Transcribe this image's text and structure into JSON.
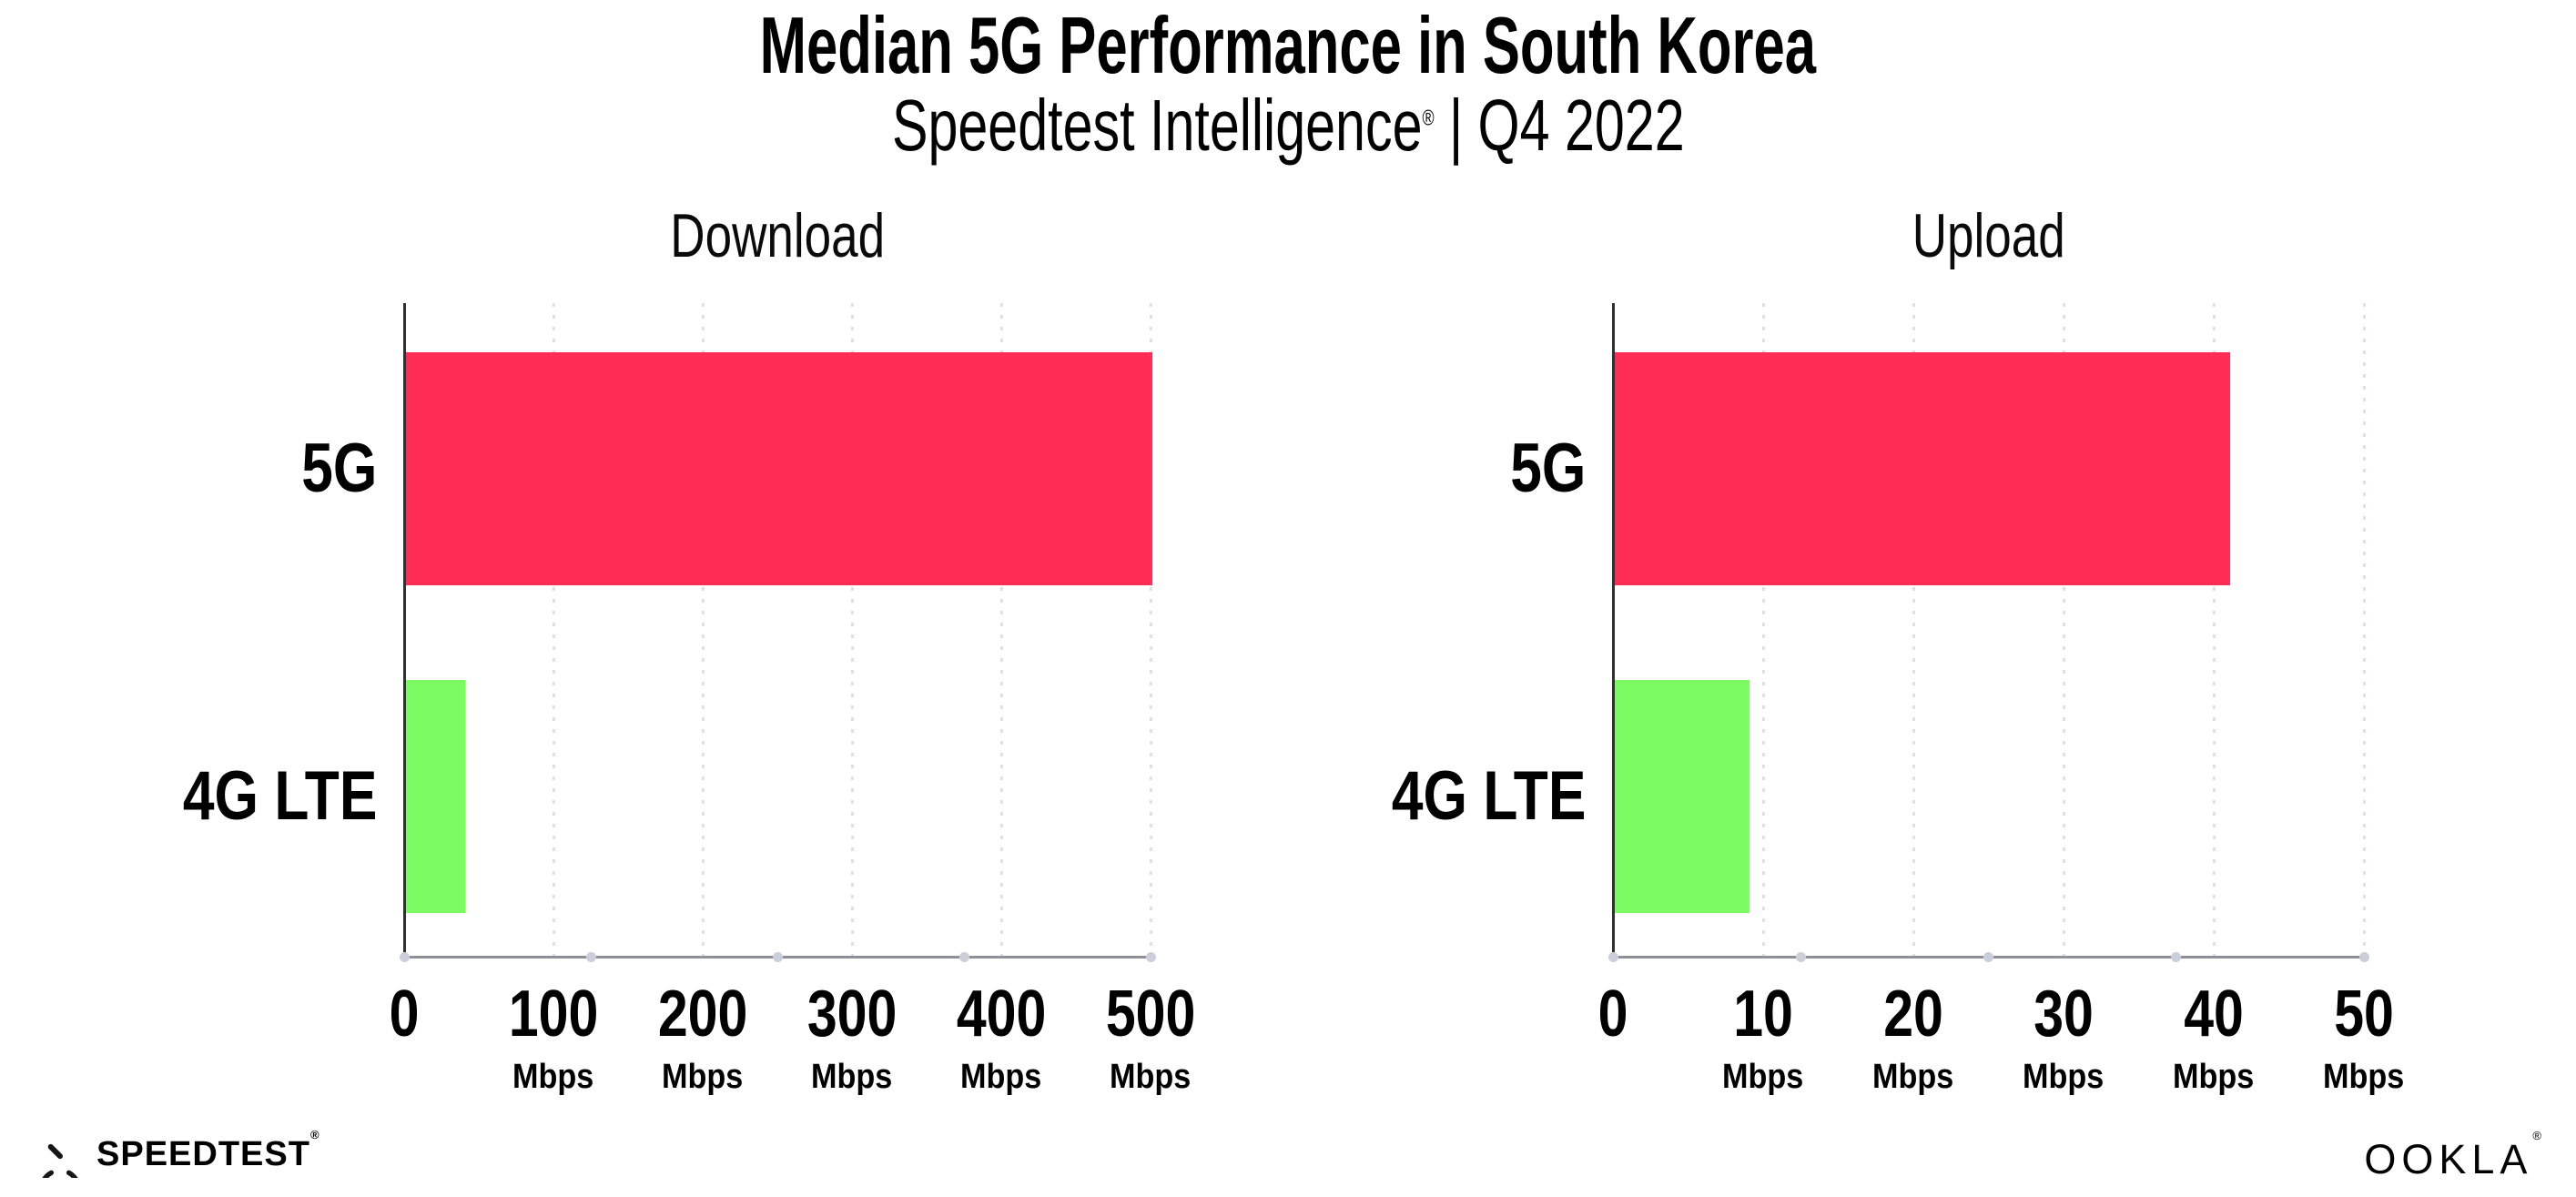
{
  "header": {
    "title": "Median 5G Performance in South Korea",
    "subtitle": {
      "brand": "Speedtest Intelligence",
      "reg": "®",
      "separator": "|",
      "period": "Q4 2022"
    }
  },
  "chart_data": [
    {
      "type": "bar",
      "orientation": "horizontal",
      "title": "Download",
      "categories": [
        "5G",
        "4G LTE"
      ],
      "values": [
        500,
        40
      ],
      "unit": "Mbps",
      "xlim": [
        0,
        500
      ],
      "xticks": [
        0,
        100,
        200,
        300,
        400,
        500
      ],
      "tick_unit_label": "Mbps",
      "grid": "dotted-vertical",
      "legend": "none",
      "bar_colors": [
        "#FF2D55",
        "#7CFB63"
      ]
    },
    {
      "type": "bar",
      "orientation": "horizontal",
      "title": "Upload",
      "categories": [
        "5G",
        "4G LTE"
      ],
      "values": [
        41,
        9
      ],
      "unit": "Mbps",
      "xlim": [
        0,
        50
      ],
      "xticks": [
        0,
        10,
        20,
        30,
        40,
        50
      ],
      "tick_unit_label": "Mbps",
      "grid": "dotted-vertical",
      "legend": "none",
      "bar_colors": [
        "#FF2D55",
        "#7CFB63"
      ]
    }
  ],
  "footer": {
    "speedtest_label": "SPEEDTEST",
    "speedtest_reg": "®",
    "ookla_label": "OOKLA",
    "ookla_reg": "®"
  },
  "colors": {
    "bar_5g": "#FF2D55",
    "bar_4g_lte": "#7CFB63",
    "y_axis_line": "#2f3038",
    "baseline": "#8f9097",
    "gridline_dots": "#dfe0ea",
    "text": "#000000",
    "background": "#ffffff"
  }
}
